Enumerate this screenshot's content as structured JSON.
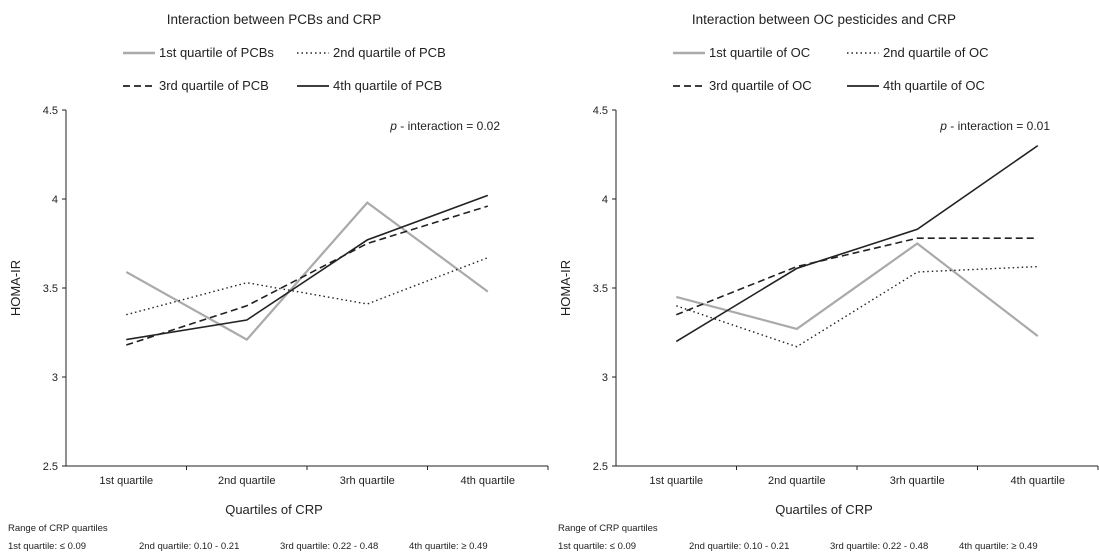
{
  "colors": {
    "q1": "#aaaaaa",
    "q2": "#222222",
    "q3": "#222222",
    "q4": "#222222",
    "axis": "#222222"
  },
  "footnote": {
    "heading": "Range of CRP quartiles",
    "items": [
      "1st quartile: ≤ 0.09",
      "2nd quartile: 0.10 - 0.21",
      "3rd quartile: 0.22 - 0.48",
      "4th quartile: ≥ 0.49"
    ]
  },
  "chart_data": [
    {
      "type": "line",
      "title": "Interaction between PCBs and CRP",
      "xlabel": "Quartiles of CRP",
      "ylabel": "HOMA-IR",
      "categories": [
        "1st quartile",
        "2nd quartile",
        "3rh quartile",
        "4th quartile"
      ],
      "ylim": [
        2.5,
        4.5
      ],
      "yticks": [
        "2.5",
        "3",
        "3.5",
        "4",
        "4.5"
      ],
      "grid": false,
      "legend_position": "top",
      "annotation": {
        "p_label": "p",
        "text": "- interaction = 0.02"
      },
      "series": [
        {
          "name": "1st quartile of PCBs",
          "style": "solid-gray",
          "values": [
            3.59,
            3.21,
            3.98,
            3.48
          ]
        },
        {
          "name": "2nd quartile of PCB",
          "style": "dotted",
          "values": [
            3.35,
            3.53,
            3.41,
            3.67
          ]
        },
        {
          "name": "3rd quartile of PCB",
          "style": "dashed",
          "values": [
            3.18,
            3.4,
            3.75,
            3.96
          ]
        },
        {
          "name": "4th quartile of PCB",
          "style": "solid-black",
          "values": [
            3.21,
            3.32,
            3.77,
            4.02
          ]
        }
      ]
    },
    {
      "type": "line",
      "title": "Interaction between OC pesticides and CRP",
      "xlabel": "Quartiles of CRP",
      "ylabel": "HOMA-IR",
      "categories": [
        "1st quartile",
        "2nd quartile",
        "3rh quartile",
        "4th quartile"
      ],
      "ylim": [
        2.5,
        4.5
      ],
      "yticks": [
        "2.5",
        "3",
        "3.5",
        "4",
        "4.5"
      ],
      "grid": false,
      "legend_position": "top",
      "annotation": {
        "p_label": "p",
        "text": "- interaction = 0.01"
      },
      "series": [
        {
          "name": "1st quartile of OC",
          "style": "solid-gray",
          "values": [
            3.45,
            3.27,
            3.75,
            3.23
          ]
        },
        {
          "name": "2nd quartile of OC",
          "style": "dotted",
          "values": [
            3.4,
            3.17,
            3.59,
            3.62
          ]
        },
        {
          "name": "3rd quartile of OC",
          "style": "dashed",
          "values": [
            3.35,
            3.62,
            3.78,
            3.78
          ]
        },
        {
          "name": "4th quartile of OC",
          "style": "solid-black",
          "values": [
            3.2,
            3.61,
            3.83,
            4.3
          ]
        }
      ]
    }
  ]
}
